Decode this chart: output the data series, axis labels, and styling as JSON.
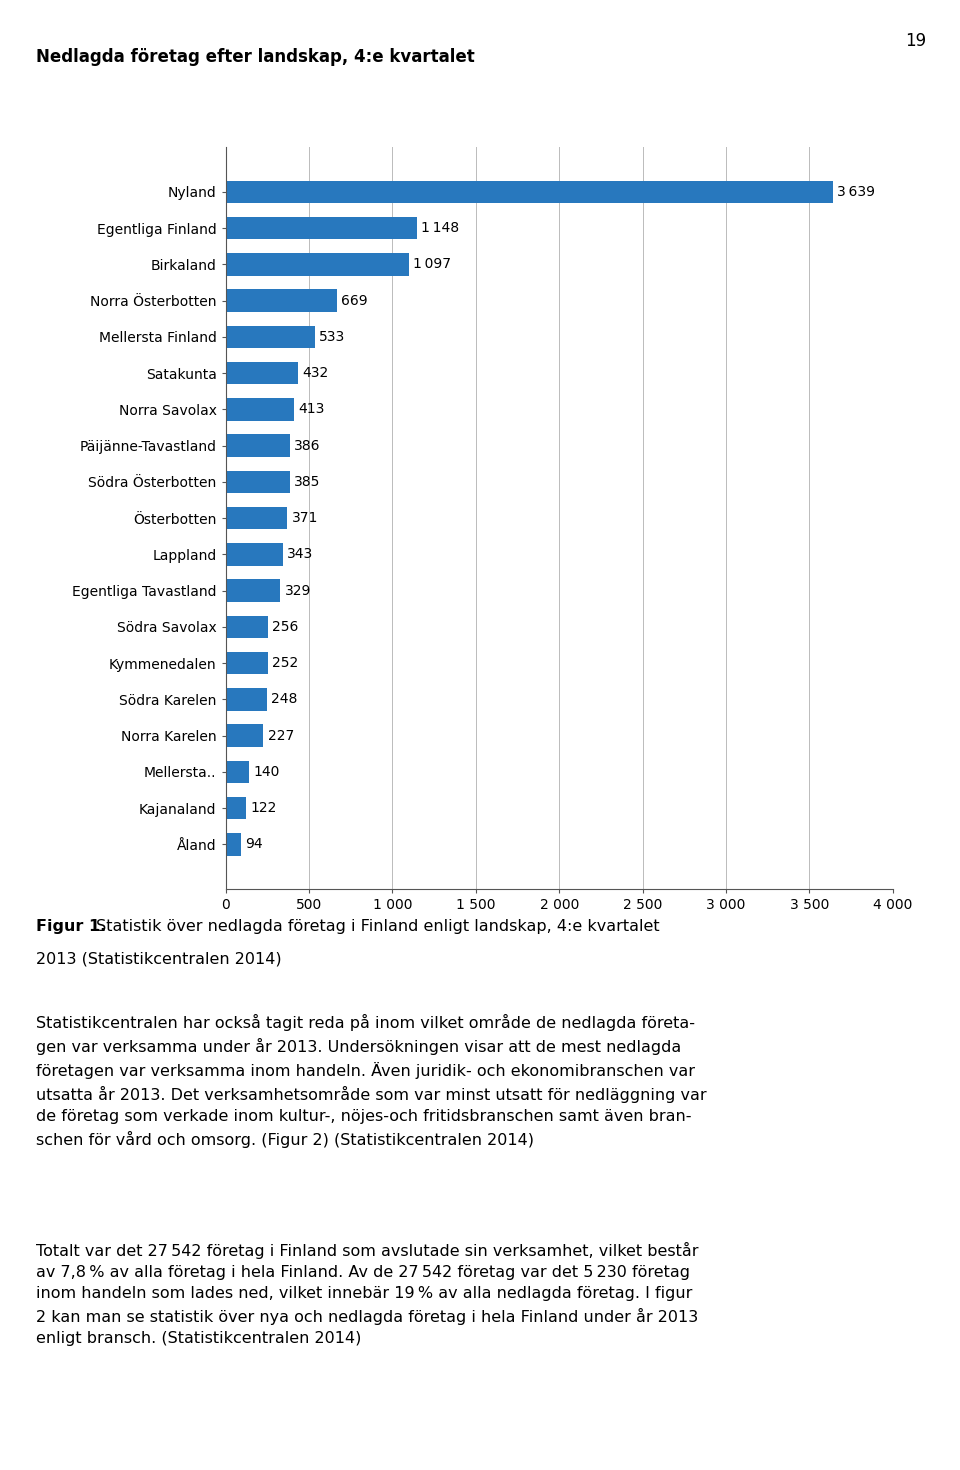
{
  "title": "Nedlagda företag efter landskap, 4:e kvartalet",
  "categories": [
    "Nyland",
    "Egentliga Finland",
    "Birkaland",
    "Norra Österbotten",
    "Mellersta Finland",
    "Satakunta",
    "Norra Savolax",
    "Päijänne-Tavastland",
    "Södra Österbotten",
    "Österbotten",
    "Lappland",
    "Egentliga Tavastland",
    "Södra Savolax",
    "Kymmenedalen",
    "Södra Karelen",
    "Norra Karelen",
    "Mellersta..",
    "Kajanaland",
    "Åland"
  ],
  "values": [
    3639,
    1148,
    1097,
    669,
    533,
    432,
    413,
    386,
    385,
    371,
    343,
    329,
    256,
    252,
    248,
    227,
    140,
    122,
    94
  ],
  "bar_color": "#2878BE",
  "xlim": [
    0,
    4000
  ],
  "xticks": [
    0,
    500,
    1000,
    1500,
    2000,
    2500,
    3000,
    3500,
    4000
  ],
  "xtick_labels": [
    "0",
    "500",
    "1 000",
    "1 500",
    "2 000",
    "2 500",
    "3 000",
    "3 500",
    "4 000"
  ],
  "title_fontsize": 12,
  "tick_fontsize": 10,
  "value_fontsize": 10,
  "page_number": "19",
  "body_fontsize": 11.5
}
